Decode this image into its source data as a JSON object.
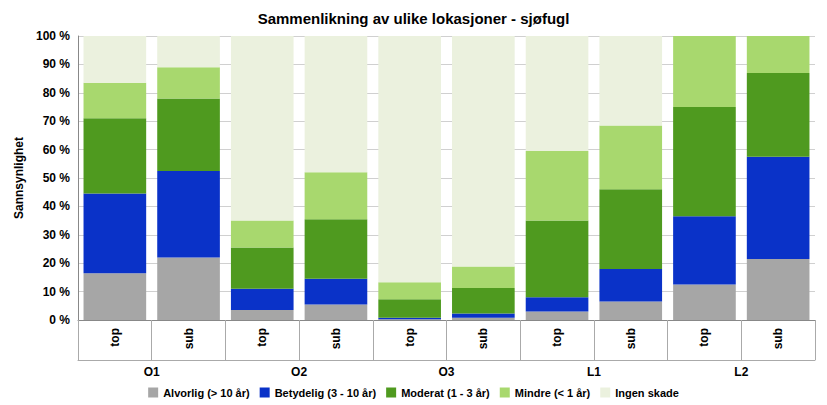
{
  "chart_data": {
    "type": "bar",
    "title": "Sammenlikning av ulike lokasjoner - sjøfugl",
    "y_label": "Sannsynlighet",
    "groups": [
      "O1",
      "O2",
      "O3",
      "L1",
      "L2"
    ],
    "categories": [
      "top",
      "sub",
      "top",
      "sub",
      "top",
      "sub",
      "top",
      "sub",
      "top",
      "sub"
    ],
    "stacked": true,
    "grid": true,
    "legend": "bottom",
    "ylim": [
      0,
      100
    ],
    "yticks": [
      {
        "value": 0,
        "label": "0 %"
      },
      {
        "value": 10,
        "label": "10 %"
      },
      {
        "value": 20,
        "label": "20 %"
      },
      {
        "value": 30,
        "label": "30 %"
      },
      {
        "value": 40,
        "label": "40 %"
      },
      {
        "value": 50,
        "label": "50 %"
      },
      {
        "value": 60,
        "label": "60 %"
      },
      {
        "value": 70,
        "label": "70 %"
      },
      {
        "value": 80,
        "label": "80 %"
      },
      {
        "value": 90,
        "label": "90 %"
      },
      {
        "value": 100,
        "label": "100 %"
      }
    ],
    "series": [
      {
        "name": "Alvorlig (> 10 år)",
        "color": "#a6a6a6",
        "values": [
          16.5,
          22,
          3.5,
          5.5,
          0.3,
          0.8,
          3,
          6.5,
          12.5,
          21.5
        ]
      },
      {
        "name": "Betydelig (3 - 10 år)",
        "color": "#0a32c8",
        "values": [
          28,
          30.5,
          7.5,
          9,
          0.5,
          1.5,
          5,
          11.5,
          24,
          36
        ]
      },
      {
        "name": "Moderat (1 - 3 år)",
        "color": "#4f9a1f",
        "values": [
          26.5,
          25.5,
          14.5,
          21,
          6.5,
          9,
          27,
          28,
          38.5,
          29.5
        ]
      },
      {
        "name": "Mindre (< 1 år)",
        "color": "#a8d86e",
        "values": [
          12.5,
          11,
          9.5,
          16.5,
          6,
          7.5,
          24.5,
          22.5,
          25,
          13
        ]
      },
      {
        "name": "Ingen skade",
        "color": "#ebf1de",
        "values": [
          16.5,
          11,
          65,
          48,
          86.7,
          81.2,
          40.5,
          31.5,
          0,
          0
        ]
      }
    ]
  }
}
